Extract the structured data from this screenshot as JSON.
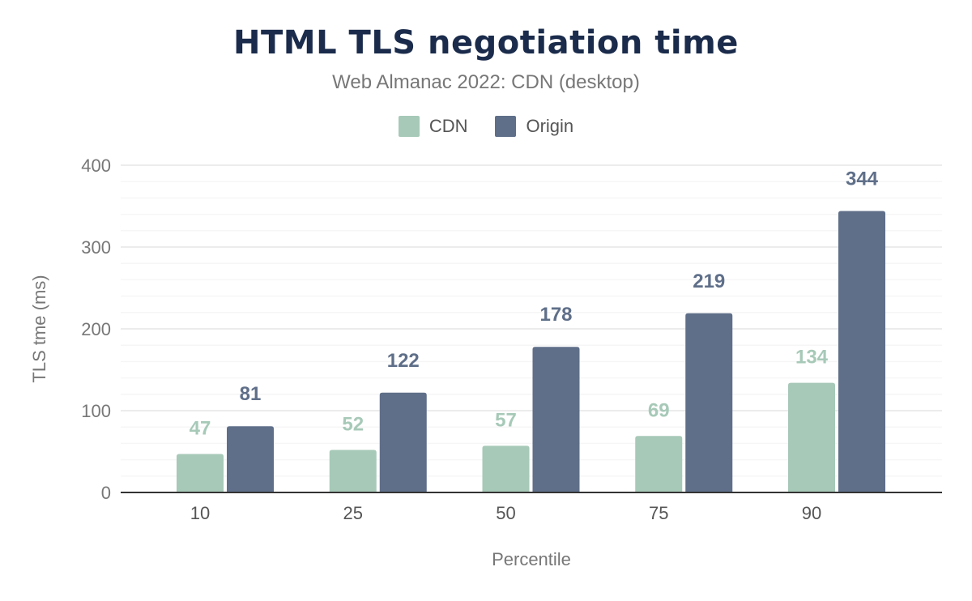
{
  "chart_data": {
    "type": "bar",
    "title": "HTML TLS negotiation time",
    "subtitle": "Web Almanac 2022: CDN (desktop)",
    "xlabel": "Percentile",
    "ylabel": "TLS tme (ms)",
    "categories": [
      "10",
      "25",
      "50",
      "75",
      "90"
    ],
    "series": [
      {
        "name": "CDN",
        "color": "#a7c9b8",
        "values": [
          47,
          52,
          57,
          69,
          134
        ]
      },
      {
        "name": "Origin",
        "color": "#5f6f89",
        "values": [
          81,
          122,
          178,
          219,
          344
        ]
      }
    ],
    "ylim": [
      0,
      400
    ],
    "yticks": [
      0,
      100,
      200,
      300,
      400
    ],
    "grid": true,
    "legend": "top-center"
  }
}
